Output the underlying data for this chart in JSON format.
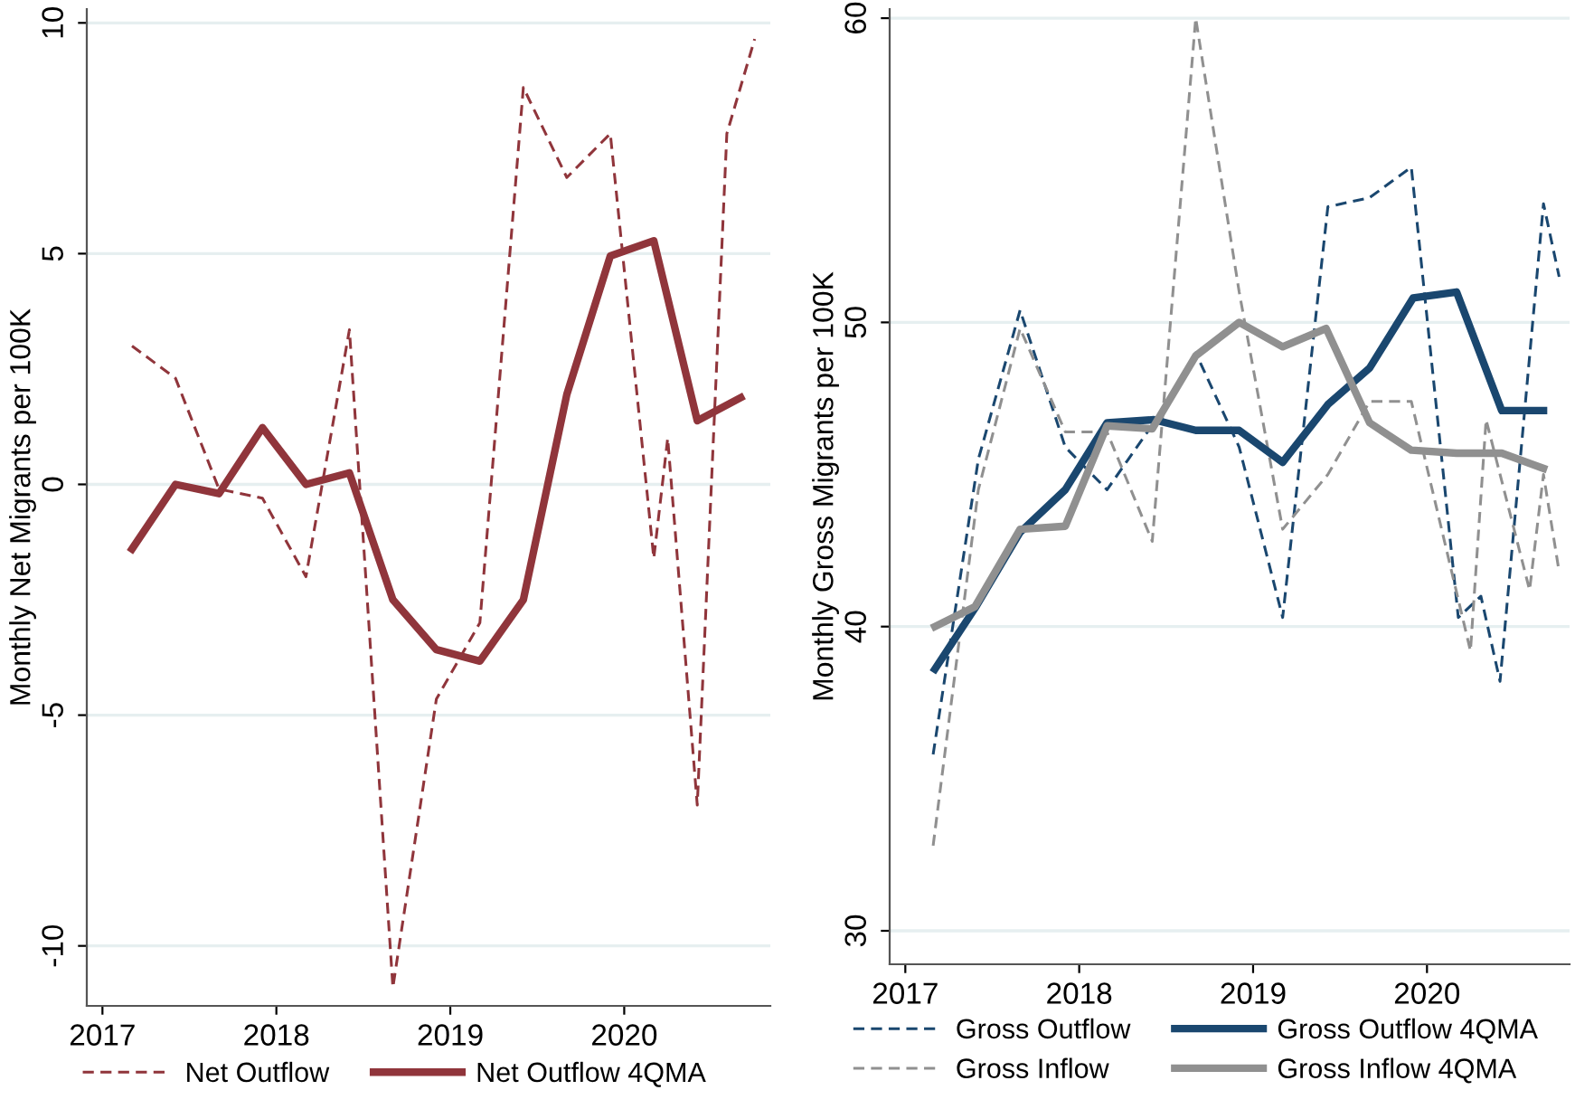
{
  "chart_data": [
    {
      "type": "line",
      "ylabel": "Monthly Net Migrants per 100K",
      "xlim": [
        2016.91,
        2020.84
      ],
      "xticks": [
        2017,
        2018,
        2019,
        2020
      ],
      "ylim": [
        -11.3,
        10.3
      ],
      "yticks": [
        -10,
        -5,
        0,
        5,
        10
      ],
      "grid": "y",
      "legend": "bottom",
      "marker": "none",
      "series": [
        {
          "name": "Net Outflow",
          "color": "#90353b",
          "line_style": "dashed",
          "x": [
            2017.17,
            2017.42,
            2017.67,
            2017.92,
            2018.17,
            2018.42,
            2018.67,
            2018.92,
            2019.17,
            2019.42,
            2019.67,
            2019.92,
            2020.17,
            2020.25,
            2020.42,
            2020.59,
            2020.75
          ],
          "values": [
            3.0,
            2.3,
            -0.1,
            -0.3,
            -2.0,
            3.35,
            -10.9,
            -4.65,
            -3.0,
            8.6,
            6.65,
            7.6,
            -1.6,
            1.0,
            -6.95,
            7.6,
            9.65
          ]
        },
        {
          "name": "Net Outflow 4QMA",
          "color": "#90353b",
          "line_style": "solid",
          "x": [
            2017.17,
            2017.42,
            2017.67,
            2017.92,
            2018.17,
            2018.42,
            2018.67,
            2018.92,
            2019.17,
            2019.42,
            2019.67,
            2019.92,
            2020.17,
            2020.42,
            2020.67
          ],
          "values": [
            -1.4,
            0.0,
            -0.2,
            1.23,
            0.0,
            0.25,
            -2.5,
            -3.58,
            -3.83,
            -2.5,
            1.95,
            4.95,
            5.28,
            1.38,
            1.88
          ]
        }
      ]
    },
    {
      "type": "line",
      "ylabel": "Monthly Gross Migrants per 100K",
      "xlim": [
        2016.91,
        2020.82
      ],
      "xticks": [
        2017,
        2018,
        2019,
        2020
      ],
      "ylim": [
        28.9,
        60.3
      ],
      "yticks": [
        30,
        40,
        50,
        60
      ],
      "grid": "y",
      "legend": "bottom",
      "marker": "none",
      "series": [
        {
          "name": "Gross Outflow",
          "color": "#1a476f",
          "line_style": "dashed",
          "x": [
            2017.16,
            2017.42,
            2017.66,
            2017.92,
            2018.16,
            2018.43,
            2018.67,
            2018.92,
            2019.17,
            2019.43,
            2019.67,
            2019.91,
            2020.18,
            2020.31,
            2020.42,
            2020.67,
            2020.76
          ],
          "values": [
            35.8,
            45.5,
            50.4,
            45.9,
            44.5,
            46.7,
            49.0,
            45.9,
            40.3,
            53.8,
            54.1,
            55.1,
            40.3,
            41.0,
            38.2,
            53.9,
            51.5
          ]
        },
        {
          "name": "Gross Inflow",
          "color": "#909090",
          "line_style": "dashed",
          "x": [
            2017.16,
            2017.42,
            2017.66,
            2017.92,
            2018.16,
            2018.42,
            2018.67,
            2018.92,
            2019.17,
            2019.43,
            2019.67,
            2019.91,
            2020.25,
            2020.34,
            2020.59,
            2020.67,
            2020.76
          ],
          "values": [
            32.8,
            44.5,
            49.8,
            46.4,
            46.4,
            42.8,
            60.0,
            51.0,
            43.2,
            45.0,
            47.4,
            47.4,
            39.2,
            46.8,
            41.2,
            45.0,
            41.8
          ]
        },
        {
          "name": "Gross Outflow 4QMA",
          "color": "#1a476f",
          "line_style": "solid",
          "x": [
            2017.17,
            2017.4,
            2017.66,
            2017.92,
            2018.16,
            2018.43,
            2018.67,
            2018.92,
            2019.17,
            2019.43,
            2019.67,
            2019.92,
            2020.17,
            2020.43,
            2020.67
          ],
          "values": [
            38.6,
            40.6,
            43.1,
            44.5,
            46.7,
            46.8,
            46.45,
            46.45,
            45.4,
            47.3,
            48.5,
            50.8,
            51.0,
            47.1,
            47.1
          ]
        },
        {
          "name": "Gross Inflow 4QMA",
          "color": "#909090",
          "line_style": "solid",
          "x": [
            2017.17,
            2017.4,
            2017.66,
            2017.92,
            2018.16,
            2018.42,
            2018.67,
            2018.92,
            2019.17,
            2019.42,
            2019.67,
            2019.91,
            2020.17,
            2020.43,
            2020.67
          ],
          "values": [
            40.0,
            40.65,
            43.2,
            43.3,
            46.6,
            46.5,
            48.9,
            50.0,
            49.2,
            49.8,
            46.7,
            45.8,
            45.7,
            45.7,
            45.2
          ]
        }
      ]
    }
  ]
}
